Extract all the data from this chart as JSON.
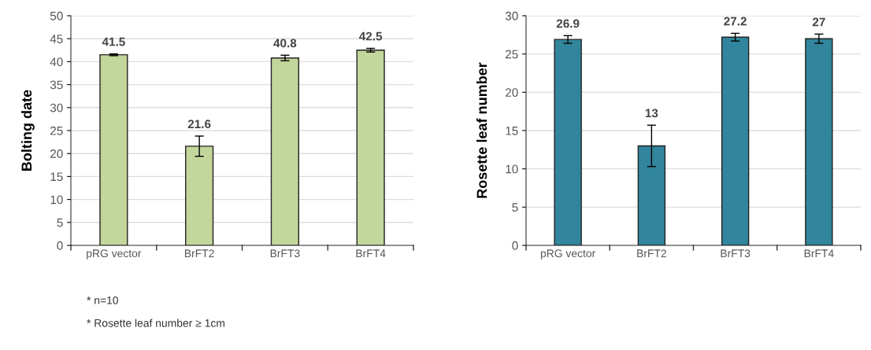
{
  "chart_data": [
    {
      "type": "bar",
      "ylabel": "Bolting date",
      "categories": [
        "pRG vector",
        "BrFT2",
        "BrFT3",
        "BrFT4"
      ],
      "values": [
        41.5,
        21.6,
        40.8,
        42.5
      ],
      "errors": [
        0.2,
        2.2,
        0.6,
        0.4
      ],
      "color": "#c3d69b",
      "ylim": [
        0,
        50
      ],
      "yticks": [
        0,
        5,
        10,
        15,
        20,
        25,
        30,
        35,
        40,
        45,
        50
      ],
      "grid": "y",
      "data_labels": true,
      "annotations": [
        "* n=10",
        "* Rosette leaf number ≥ 1cm"
      ]
    },
    {
      "type": "bar",
      "ylabel": "Rosette leaf number",
      "categories": [
        "pRG vector",
        "BrFT2",
        "BrFT3",
        "BrFT4"
      ],
      "values": [
        26.9,
        13,
        27.2,
        27
      ],
      "errors": [
        0.5,
        2.7,
        0.5,
        0.6
      ],
      "color": "#31859c",
      "ylim": [
        0,
        30
      ],
      "yticks": [
        0,
        5,
        10,
        15,
        20,
        25,
        30
      ],
      "grid": "y",
      "data_labels": true
    }
  ]
}
